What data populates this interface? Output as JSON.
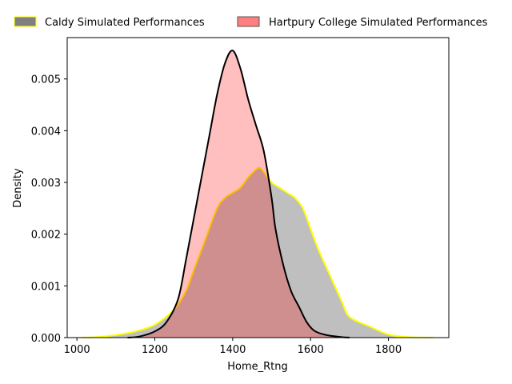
{
  "chart_data": {
    "type": "area",
    "title": "",
    "xlabel": "Home_Rtng",
    "ylabel": "Density",
    "xlim": [
      975,
      1955
    ],
    "ylim": [
      0,
      0.0058
    ],
    "xticks": [
      1000,
      1200,
      1400,
      1600,
      1800
    ],
    "yticks": [
      0.0,
      0.001,
      0.002,
      0.003,
      0.004,
      0.005
    ],
    "ytick_labels": [
      "0.000",
      "0.001",
      "0.002",
      "0.003",
      "0.004",
      "0.005"
    ],
    "grid": false,
    "legend_position": "top",
    "series": [
      {
        "name": "Caldy Simulated Performances",
        "fill": "#808080",
        "fill_opacity": 0.5,
        "line": "#ffff00",
        "legend_fill": "#808080",
        "legend_edge": "#ffff00",
        "points": [
          [
            1010,
            0
          ],
          [
            1050,
            1e-05
          ],
          [
            1100,
            5e-05
          ],
          [
            1150,
            0.00012
          ],
          [
            1200,
            0.00025
          ],
          [
            1250,
            0.00055
          ],
          [
            1280,
            0.0009
          ],
          [
            1300,
            0.0013
          ],
          [
            1330,
            0.0019
          ],
          [
            1360,
            0.0025
          ],
          [
            1380,
            0.0027
          ],
          [
            1400,
            0.0028
          ],
          [
            1420,
            0.0029
          ],
          [
            1440,
            0.0031
          ],
          [
            1460,
            0.00325
          ],
          [
            1470,
            0.00328
          ],
          [
            1480,
            0.0032
          ],
          [
            1500,
            0.003
          ],
          [
            1520,
            0.0029
          ],
          [
            1540,
            0.0028
          ],
          [
            1560,
            0.0027
          ],
          [
            1580,
            0.0025
          ],
          [
            1600,
            0.0021
          ],
          [
            1620,
            0.0017
          ],
          [
            1650,
            0.0012
          ],
          [
            1680,
            0.0007
          ],
          [
            1700,
            0.0004
          ],
          [
            1750,
            0.00022
          ],
          [
            1800,
            6e-05
          ],
          [
            1850,
            1e-05
          ],
          [
            1915,
            0
          ]
        ]
      },
      {
        "name": "Hartpury College Simulated Performances",
        "fill": "#ff0000",
        "fill_opacity": 0.25,
        "line": "#000000",
        "legend_fill": "#ff7f7f",
        "legend_edge": "#555555",
        "points": [
          [
            1130,
            0
          ],
          [
            1160,
            2e-05
          ],
          [
            1200,
            0.00012
          ],
          [
            1230,
            0.0003
          ],
          [
            1260,
            0.00075
          ],
          [
            1280,
            0.0015
          ],
          [
            1300,
            0.0023
          ],
          [
            1320,
            0.0031
          ],
          [
            1340,
            0.0039
          ],
          [
            1360,
            0.0047
          ],
          [
            1380,
            0.0053
          ],
          [
            1400,
            0.00555
          ],
          [
            1420,
            0.0052
          ],
          [
            1440,
            0.0046
          ],
          [
            1460,
            0.0041
          ],
          [
            1480,
            0.0036
          ],
          [
            1500,
            0.0027
          ],
          [
            1510,
            0.0021
          ],
          [
            1530,
            0.0014
          ],
          [
            1550,
            0.0009
          ],
          [
            1570,
            0.0006
          ],
          [
            1590,
            0.0003
          ],
          [
            1610,
            0.00013
          ],
          [
            1640,
            5e-05
          ],
          [
            1680,
            1e-05
          ],
          [
            1700,
            0
          ]
        ]
      }
    ]
  }
}
